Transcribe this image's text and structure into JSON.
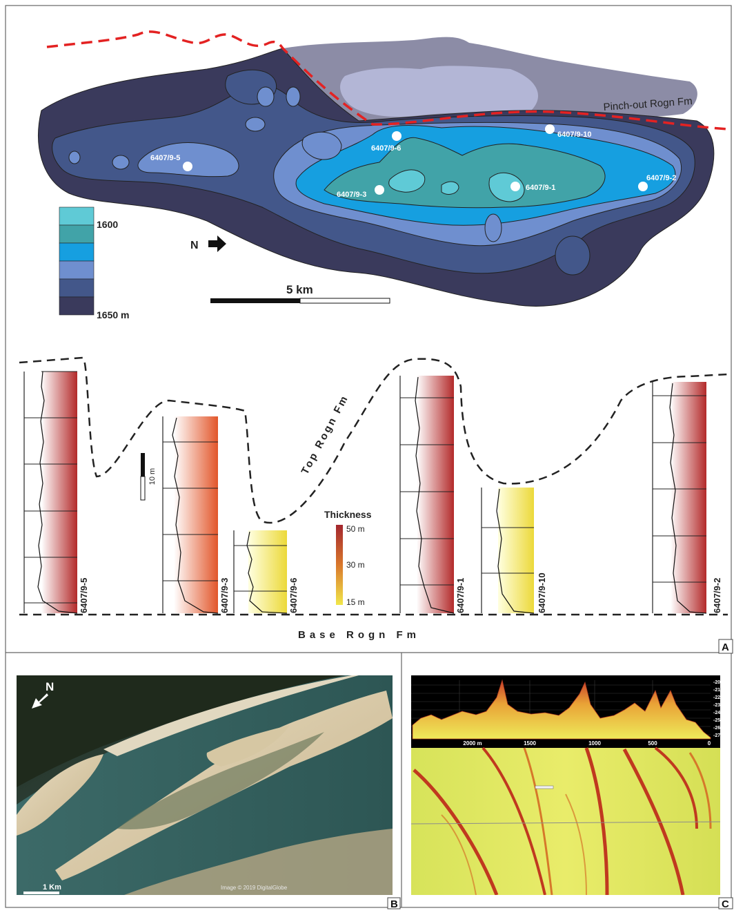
{
  "panel_a": {
    "label": "A",
    "pinchout_label": "Pinch-out Rogn Fm",
    "north_label": "N",
    "scale_label": "5 km",
    "legend": {
      "top_value": "1600",
      "bottom_value": "1650 m",
      "colors": [
        "#5fcad6",
        "#41a3a8",
        "#169fe0",
        "#6f8fcf",
        "#43578a",
        "#3a3a5c"
      ]
    },
    "wells": [
      {
        "name": "6407/9-5"
      },
      {
        "name": "6407/9-6"
      },
      {
        "name": "6407/9-3"
      },
      {
        "name": "6407/9-10"
      },
      {
        "name": "6407/9-1"
      },
      {
        "name": "6407/9-2"
      }
    ],
    "top_label": "Top Rogn Fm",
    "base_label": "Base Rogn Fm",
    "vertical_scale": "10 m",
    "thickness": {
      "title": "Thickness",
      "values": [
        "50 m",
        "30 m",
        "15 m"
      ]
    },
    "logs": [
      {
        "name": "6407/9-5"
      },
      {
        "name": "6407/9-3"
      },
      {
        "name": "6407/9-6"
      },
      {
        "name": "6407/9-1"
      },
      {
        "name": "6407/9-10"
      },
      {
        "name": "6407/9-2"
      }
    ]
  },
  "panel_b": {
    "label": "B",
    "north_label": "N",
    "scale_label": "1 Km",
    "credit": "Image © 2019 DigitalGlobe"
  },
  "panel_c": {
    "label": "C",
    "distance_ticks": [
      "2000 m",
      "1500",
      "1000",
      "500",
      "0"
    ],
    "depth_ticks": [
      "-20.00",
      "-21.00",
      "-22.00",
      "-23.00",
      "-24.00",
      "-25.00",
      "-26.00",
      "-27.00"
    ]
  }
}
